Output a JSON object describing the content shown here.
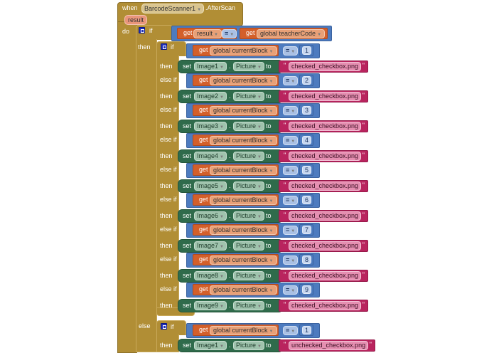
{
  "event": {
    "when_label": "when",
    "component": "BarcodeScanner1",
    "event_name": ".AfterScan",
    "param": "result",
    "do_label": "do"
  },
  "outer_if": {
    "if_label": "if",
    "then_label": "then",
    "else_label": "else",
    "condition": {
      "left_get": "get",
      "left_var": "result",
      "operator": "=",
      "right_get": "get",
      "right_var": "global teacherCode"
    }
  },
  "labels": {
    "if": "if",
    "then": "then",
    "else_if": "else if",
    "get": "get",
    "set": "set",
    "to": "to",
    "dot": ".",
    "quote": "\"",
    "eq": "="
  },
  "then_branch": {
    "clauses": [
      {
        "var": "global currentBlock",
        "value": "1",
        "component": "Image1",
        "property": "Picture",
        "text": "checked_checkbox.png"
      },
      {
        "var": "global currentBlock",
        "value": "2",
        "component": "Image2",
        "property": "Picture",
        "text": "checked_checkbox.png"
      },
      {
        "var": "global currentBlock",
        "value": "3",
        "component": "Image3",
        "property": "Picture",
        "text": "checked_checkbox.png"
      },
      {
        "var": "global currentBlock",
        "value": "4",
        "component": "Image4",
        "property": "Picture",
        "text": "checked_checkbox.png"
      },
      {
        "var": "global currentBlock",
        "value": "5",
        "component": "Image5",
        "property": "Picture",
        "text": "checked_checkbox.png"
      },
      {
        "var": "global currentBlock",
        "value": "6",
        "component": "Image6",
        "property": "Picture",
        "text": "checked_checkbox.png"
      },
      {
        "var": "global currentBlock",
        "value": "7",
        "component": "Image7",
        "property": "Picture",
        "text": "checked_checkbox.png"
      },
      {
        "var": "global currentBlock",
        "value": "8",
        "component": "Image8",
        "property": "Picture",
        "text": "checked_checkbox.png"
      },
      {
        "var": "global currentBlock",
        "value": "9",
        "component": "Image9",
        "property": "Picture",
        "text": "checked_checkbox.png"
      }
    ]
  },
  "else_branch": {
    "clauses": [
      {
        "var": "global currentBlock",
        "value": "1",
        "component": "Image1",
        "property": "Picture",
        "text": "unchecked_checkbox.png"
      }
    ]
  },
  "colors": {
    "control": "#b18e35",
    "logic": "#4d7bbf",
    "variable_get": "#d35f2a",
    "component_set": "#2f6b4b",
    "text": "#b9245e"
  }
}
